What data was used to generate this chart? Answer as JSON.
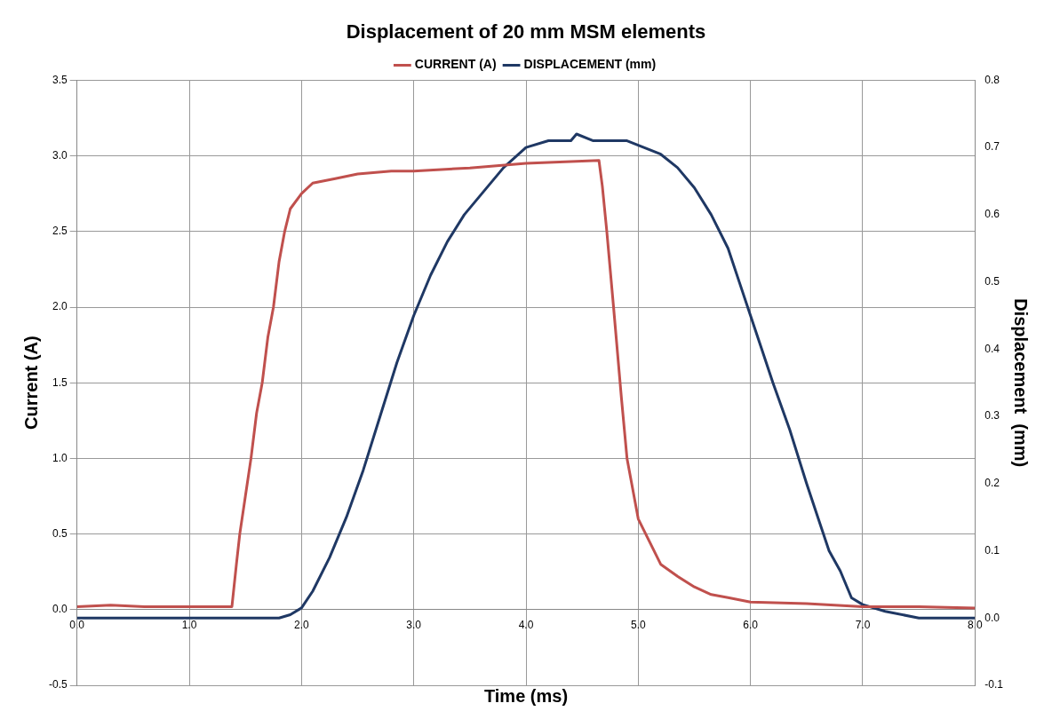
{
  "chart_data": {
    "type": "line",
    "title": "Displacement of 20 mm MSM elements",
    "xlabel": "Time (ms)",
    "ylabel": "Current (A)",
    "y2label": "Displacement  (mm)",
    "xlim": [
      0,
      8
    ],
    "xticks": [
      {
        "value": 0,
        "label": "0.0"
      },
      {
        "value": 1,
        "label": "1.0"
      },
      {
        "value": 2,
        "label": "2.0"
      },
      {
        "value": 3,
        "label": "3.0"
      },
      {
        "value": 4,
        "label": "4.0"
      },
      {
        "value": 5,
        "label": "5.0"
      },
      {
        "value": 6,
        "label": "6.0"
      },
      {
        "value": 7,
        "label": "7.0"
      },
      {
        "value": 8,
        "label": "8.0"
      }
    ],
    "ylim": [
      -0.5,
      3.5
    ],
    "yticks": [
      {
        "value": -0.5,
        "label": "-0.5"
      },
      {
        "value": 0,
        "label": "0.0"
      },
      {
        "value": 0.5,
        "label": "0.5"
      },
      {
        "value": 1,
        "label": "1.0"
      },
      {
        "value": 1.5,
        "label": "1.5"
      },
      {
        "value": 2,
        "label": "2.0"
      },
      {
        "value": 2.5,
        "label": "2.5"
      },
      {
        "value": 3,
        "label": "3.0"
      },
      {
        "value": 3.5,
        "label": "3.5"
      }
    ],
    "y2lim": [
      -0.1,
      0.8
    ],
    "y2ticks": [
      {
        "value": -0.1,
        "label": "-0.1"
      },
      {
        "value": 0,
        "label": "0.0"
      },
      {
        "value": 0.1,
        "label": "0.1"
      },
      {
        "value": 0.2,
        "label": "0.2"
      },
      {
        "value": 0.3,
        "label": "0.3"
      },
      {
        "value": 0.4,
        "label": "0.4"
      },
      {
        "value": 0.5,
        "label": "0.5"
      },
      {
        "value": 0.6,
        "label": "0.6"
      },
      {
        "value": 0.7,
        "label": "0.7"
      },
      {
        "value": 0.8,
        "label": "0.8"
      }
    ],
    "grid": true,
    "legend": "top",
    "marker": "none",
    "line_style": "solid",
    "series": [
      {
        "name": "CURRENT (A)",
        "color": "#c0504d",
        "x": [
          0,
          0.3,
          0.6,
          0.9,
          1.2,
          1.38,
          1.42,
          1.45,
          1.5,
          1.55,
          1.6,
          1.65,
          1.7,
          1.75,
          1.8,
          1.85,
          1.9,
          2.0,
          2.1,
          2.3,
          2.5,
          2.8,
          3.0,
          3.5,
          4.0,
          4.3,
          4.65,
          4.68,
          4.72,
          4.78,
          4.85,
          4.9,
          4.95,
          5.0,
          5.1,
          5.2,
          5.35,
          5.5,
          5.65,
          5.8,
          6.0,
          6.5,
          7.0,
          7.5,
          8.0
        ],
        "values": [
          0.02,
          0.03,
          0.02,
          0.02,
          0.02,
          0.02,
          0.3,
          0.5,
          0.75,
          1.0,
          1.3,
          1.5,
          1.8,
          2.0,
          2.3,
          2.5,
          2.65,
          2.75,
          2.82,
          2.85,
          2.88,
          2.9,
          2.9,
          2.92,
          2.95,
          2.96,
          2.97,
          2.8,
          2.5,
          2.0,
          1.4,
          1.0,
          0.8,
          0.6,
          0.45,
          0.3,
          0.22,
          0.15,
          0.1,
          0.08,
          0.05,
          0.04,
          0.02,
          0.02,
          0.01
        ]
      },
      {
        "name": "DISPLACEMENT (mm)",
        "color": "#1f3864",
        "axis": "y2",
        "x": [
          0,
          0.5,
          1.0,
          1.5,
          1.8,
          1.9,
          2.0,
          2.1,
          2.25,
          2.4,
          2.55,
          2.7,
          2.85,
          3.0,
          3.15,
          3.3,
          3.45,
          3.6,
          3.8,
          4.0,
          4.2,
          4.4,
          4.45,
          4.6,
          4.9,
          5.05,
          5.2,
          5.35,
          5.5,
          5.65,
          5.8,
          5.9,
          6.0,
          6.1,
          6.2,
          6.35,
          6.5,
          6.6,
          6.7,
          6.8,
          6.9,
          7.0,
          7.2,
          7.5,
          8.0
        ],
        "values": [
          0.0,
          0.0,
          0.0,
          0.0,
          0.0,
          0.005,
          0.015,
          0.04,
          0.09,
          0.15,
          0.22,
          0.3,
          0.38,
          0.45,
          0.51,
          0.56,
          0.6,
          0.63,
          0.67,
          0.7,
          0.71,
          0.71,
          0.72,
          0.71,
          0.71,
          0.7,
          0.69,
          0.67,
          0.64,
          0.6,
          0.55,
          0.5,
          0.45,
          0.4,
          0.35,
          0.28,
          0.2,
          0.15,
          0.1,
          0.07,
          0.03,
          0.02,
          0.01,
          0.0,
          0.0
        ]
      }
    ]
  }
}
